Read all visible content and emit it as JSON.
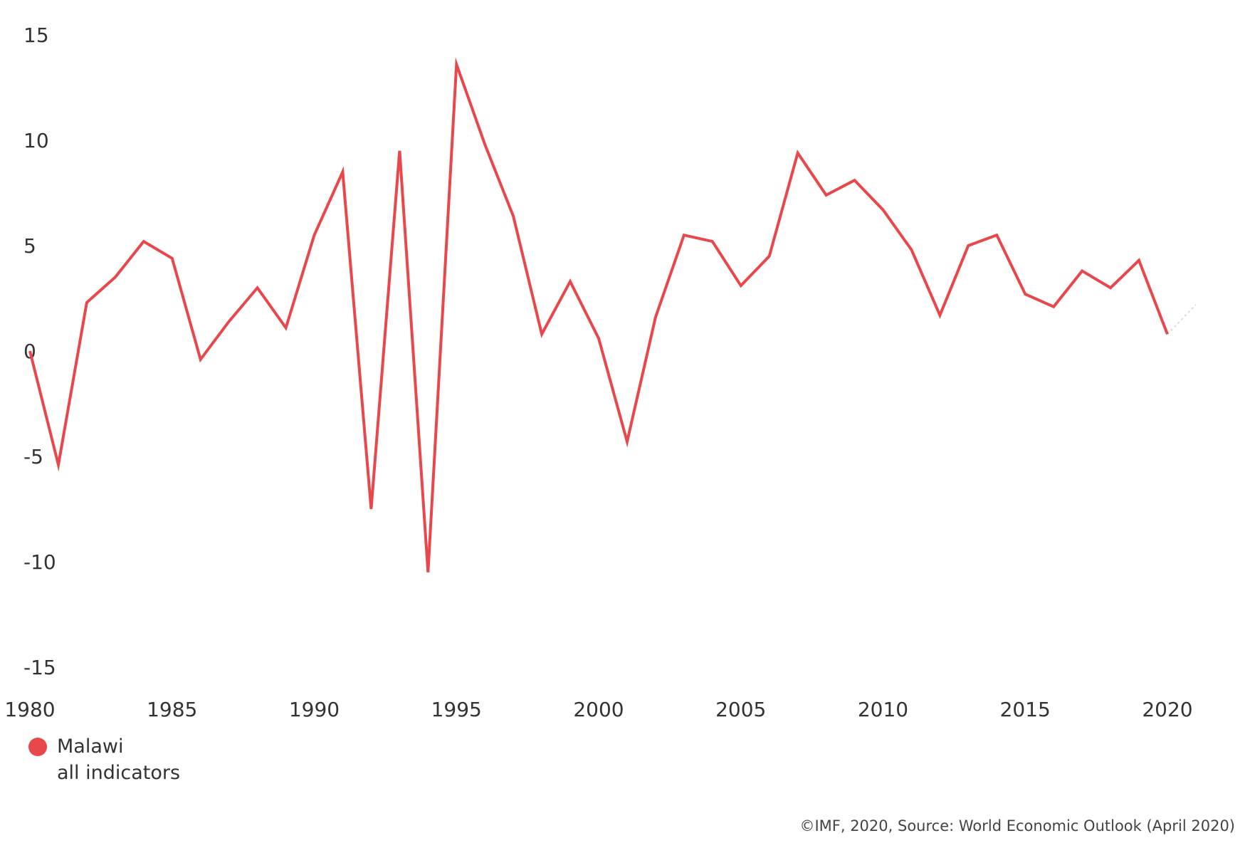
{
  "colors": {
    "series": "#e8474b",
    "projection": "#d9d9d9",
    "text": "#333333"
  },
  "legend": {
    "name": "Malawi",
    "sub": "all indicators",
    "marker_color": "#e8474b"
  },
  "footer": {
    "text": "©IMF, 2020, Source: World Economic Outlook (April 2020)"
  },
  "chart_data": {
    "type": "line",
    "title": "",
    "xlabel": "",
    "ylabel": "",
    "xlim": [
      1980,
      2021
    ],
    "ylim": [
      -15,
      15
    ],
    "yticks": [
      "15",
      "10",
      "5",
      "0",
      "-5",
      "-10",
      "-15"
    ],
    "xticks": [
      "1980",
      "1985",
      "1990",
      "1995",
      "2000",
      "2005",
      "2010",
      "2015",
      "2020"
    ],
    "grid": false,
    "legend_position": "bottom-left",
    "x": [
      1980,
      1981,
      1982,
      1983,
      1984,
      1985,
      1986,
      1987,
      1988,
      1989,
      1990,
      1991,
      1992,
      1993,
      1994,
      1995,
      1996,
      1997,
      1998,
      1999,
      2000,
      2001,
      2002,
      2003,
      2004,
      2005,
      2006,
      2007,
      2008,
      2009,
      2010,
      2011,
      2012,
      2013,
      2014,
      2015,
      2016,
      2017,
      2018,
      2019,
      2020
    ],
    "series": [
      {
        "name": "Malawi",
        "values": [
          0.0,
          -5.4,
          2.3,
          3.5,
          5.2,
          4.4,
          -0.4,
          1.4,
          3.0,
          1.1,
          5.5,
          8.5,
          -7.5,
          9.5,
          -10.5,
          13.6,
          9.8,
          6.4,
          0.8,
          3.3,
          0.6,
          -4.3,
          1.6,
          5.5,
          5.2,
          3.1,
          4.5,
          9.4,
          7.4,
          8.1,
          6.7,
          4.8,
          1.7,
          5.0,
          5.5,
          2.7,
          2.1,
          3.8,
          3.0,
          4.3,
          0.8
        ]
      }
    ],
    "projection": {
      "x": [
        2020,
        2021
      ],
      "values": [
        0.8,
        2.2
      ]
    }
  }
}
